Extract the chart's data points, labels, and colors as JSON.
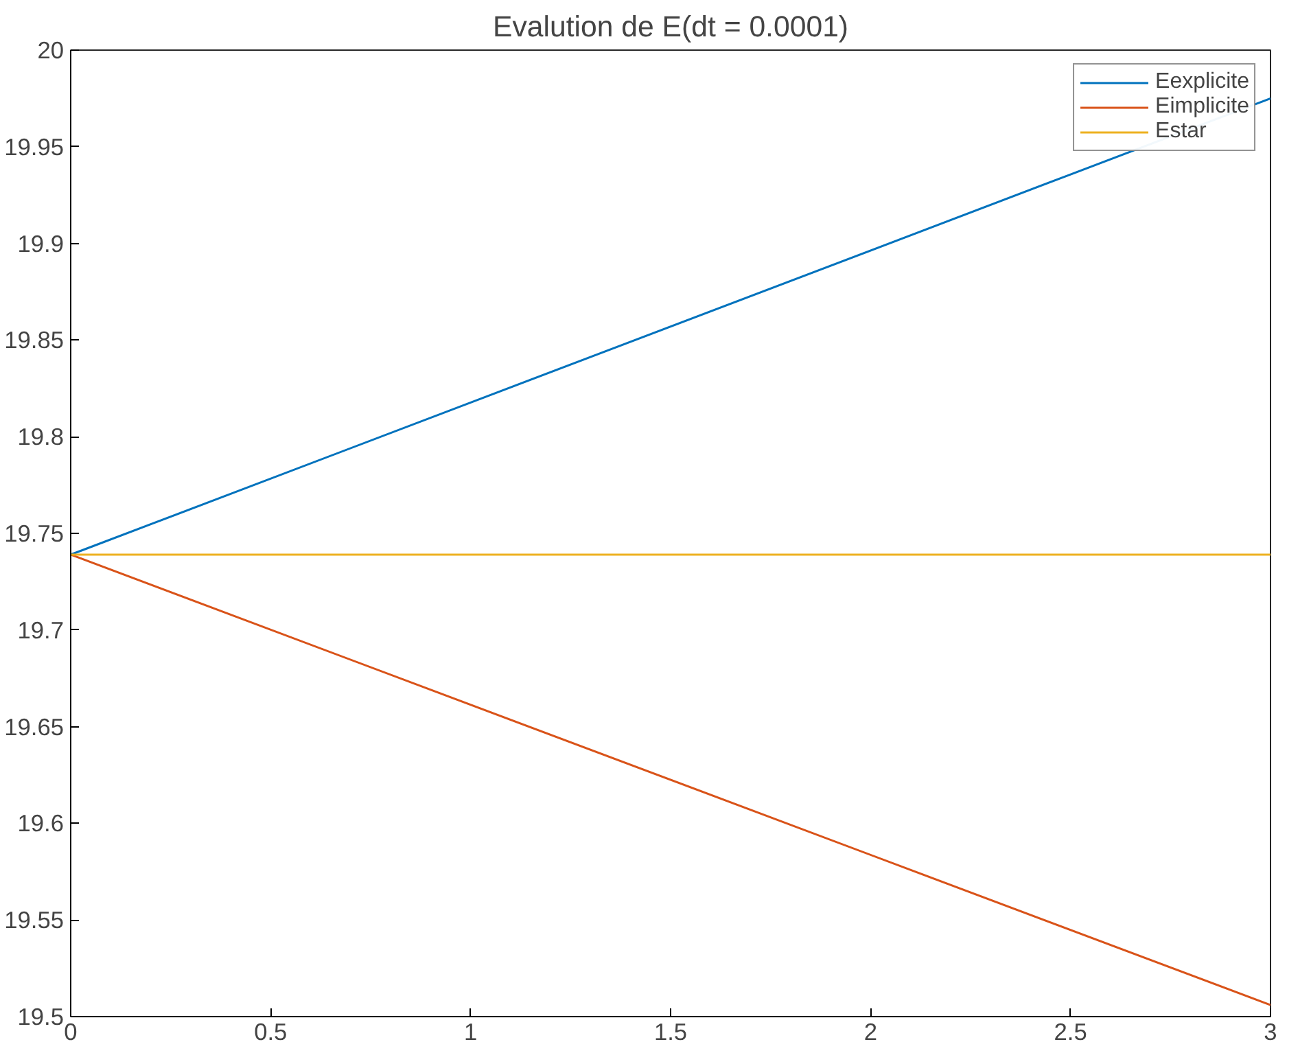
{
  "chart_data": {
    "type": "line",
    "title": "Evalution de E(dt = 0.0001)",
    "x": [
      0,
      3
    ],
    "series": [
      {
        "name": "Eexplicite",
        "color": "#0072bd",
        "values": [
          19.739,
          19.975
        ]
      },
      {
        "name": "Eimplicite",
        "color": "#d95319",
        "values": [
          19.739,
          19.506
        ]
      },
      {
        "name": "Estar",
        "color": "#edb120",
        "values": [
          19.739,
          19.739
        ]
      }
    ],
    "xlim": [
      0,
      3
    ],
    "xticks": [
      0,
      0.5,
      1,
      1.5,
      2,
      2.5,
      3
    ],
    "ylim": [
      19.5,
      20
    ],
    "yticks": [
      19.5,
      19.55,
      19.6,
      19.65,
      19.7,
      19.75,
      19.8,
      19.85,
      19.9,
      19.95,
      20
    ],
    "grid": false,
    "legend": "top right",
    "marker": "none",
    "line_style": "solid"
  }
}
